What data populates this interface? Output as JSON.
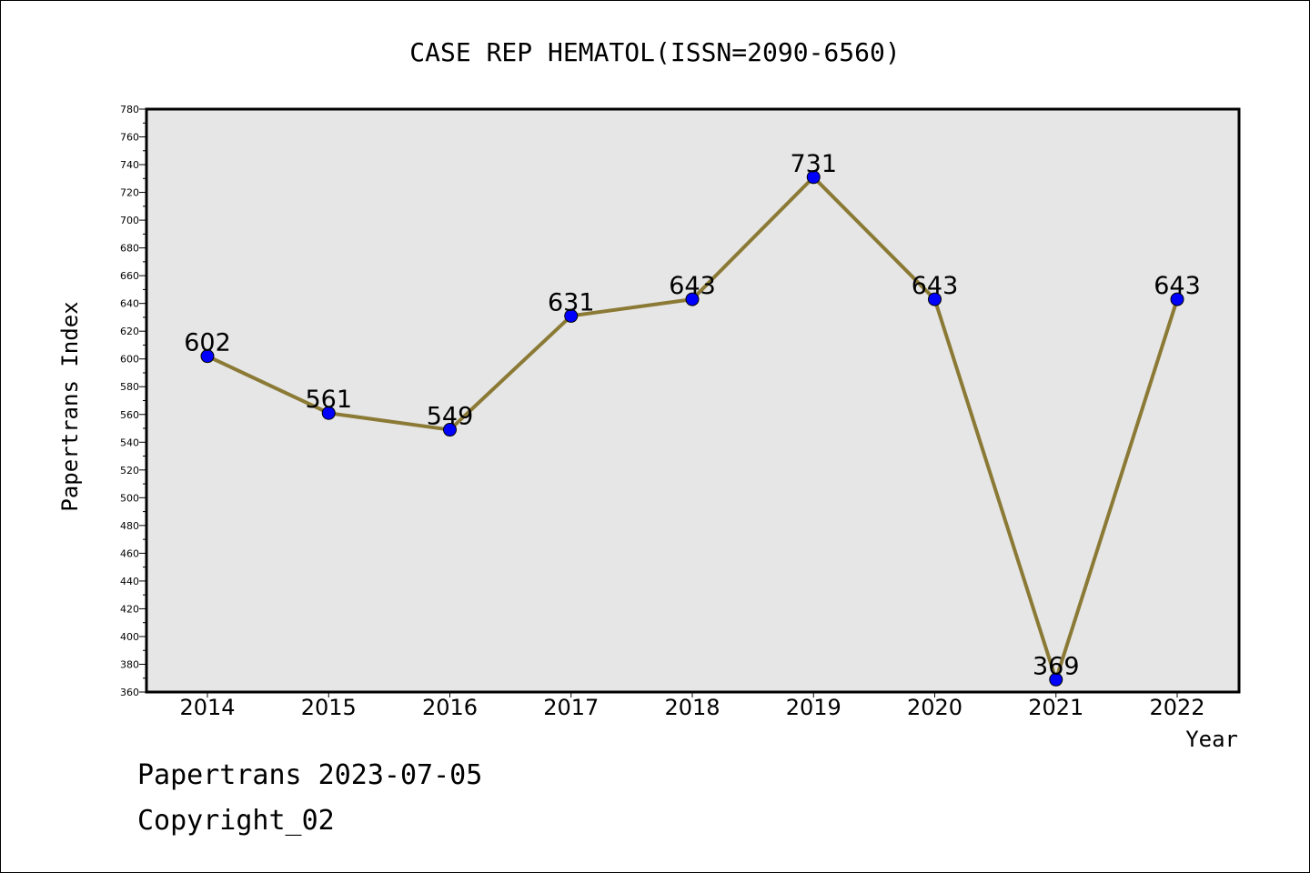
{
  "chart_data": {
    "type": "line",
    "title": "CASE REP HEMATOL(ISSN=2090-6560)",
    "xlabel": "Year",
    "ylabel": "Papertrans Index",
    "categories": [
      "2014",
      "2015",
      "2016",
      "2017",
      "2018",
      "2019",
      "2020",
      "2021",
      "2022"
    ],
    "values": [
      602,
      561,
      549,
      631,
      643,
      731,
      643,
      369,
      643
    ],
    "data_labels": [
      "602",
      "561",
      "549",
      "631",
      "643",
      "731",
      "643",
      "369",
      "643"
    ],
    "ylim": [
      360,
      780
    ],
    "yticks": [
      "360",
      "380",
      "400",
      "420",
      "440",
      "460",
      "480",
      "500",
      "520",
      "540",
      "560",
      "580",
      "600",
      "620",
      "640",
      "660",
      "680",
      "700",
      "720",
      "740",
      "760",
      "780"
    ],
    "grid": false,
    "legend": "none",
    "colors": {
      "line": "#8b7a35",
      "marker": "#0000ff",
      "plot_background": "#e6e6e6"
    }
  },
  "footer": {
    "date_text": "Papertrans 2023-07-05",
    "copyright_text": "Copyright_02"
  }
}
